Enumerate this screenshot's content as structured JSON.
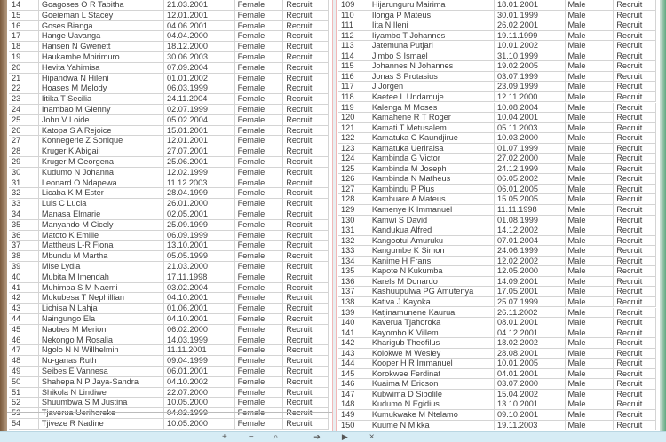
{
  "left_table": {
    "rows": [
      [
        "14",
        "Goagoses O R Tabitha",
        "21.03.2001",
        "Female",
        "Recruit"
      ],
      [
        "15",
        "Goeieman L  Stacey",
        "12.01.2001",
        "Female",
        "Recruit"
      ],
      [
        "16",
        "Goses Bianga",
        "04.06.2001",
        "Female",
        "Recruit"
      ],
      [
        "17",
        "Hange Uavanga",
        "04.04.2000",
        "Female",
        "Recruit"
      ],
      [
        "18",
        "Hansen N Gwenett",
        "18.12.2000",
        "Female",
        "Recruit"
      ],
      [
        "19",
        "Haukambe Mbirimuro",
        "30.06.2003",
        "Female",
        "Recruit"
      ],
      [
        "20",
        "Hevita Yahimisa",
        "07.09.2004",
        "Female",
        "Recruit"
      ],
      [
        "21",
        "Hipandwa N Hileni",
        "01.01.2002",
        "Female",
        "Recruit"
      ],
      [
        "22",
        "Hoases M Melody",
        "06.03.1999",
        "Female",
        "Recruit"
      ],
      [
        "23",
        "Iitika T Secilia",
        "24.11.2004",
        "Female",
        "Recruit"
      ],
      [
        "24",
        "Inambao  M Glenny",
        "02.07.1999",
        "Female",
        "Recruit"
      ],
      [
        "25",
        "John V Loide",
        "05.02.2004",
        "Female",
        "Recruit"
      ],
      [
        "26",
        "Katopa S A Rejoice",
        "15.01.2001",
        "Female",
        "Recruit"
      ],
      [
        "27",
        "Konnegerie Z Sonique",
        "12.01.2001",
        "Female",
        "Recruit"
      ],
      [
        "28",
        "Kruger  K Abigail",
        "27.07.2001",
        "Female",
        "Recruit"
      ],
      [
        "29",
        "Kruger M Georgena",
        "25.06.2001",
        "Female",
        "Recruit"
      ],
      [
        "30",
        "Kudumo N Johanna",
        "12.02.1999",
        "Female",
        "Recruit"
      ],
      [
        "31",
        "Leonard O Ndapewa",
        "11.12.2003",
        "Female",
        "Recruit"
      ],
      [
        "32",
        "Licaba K M Ester",
        "28.04.1999",
        "Female",
        "Recruit"
      ],
      [
        "33",
        "Luis C Lucia",
        "26.01.2000",
        "Female",
        "Recruit"
      ],
      [
        "34",
        "Manasa Elmarie",
        "02.05.2001",
        "Female",
        "Recruit"
      ],
      [
        "35",
        "Manyando M Cicely",
        "25.09.1999",
        "Female",
        "Recruit"
      ],
      [
        "36",
        "Matoto K Emilie",
        "06.09.1999",
        "Female",
        "Recruit"
      ],
      [
        "37",
        "Mattheus L-R Fiona",
        "13.10.2001",
        "Female",
        "Recruit"
      ],
      [
        "38",
        "Mbundu M Martha",
        "05.05.1999",
        "Female",
        "Recruit"
      ],
      [
        "39",
        "Mise Lydia",
        "21.03.2000",
        "Female",
        "Recruit"
      ],
      [
        "40",
        "Mubita M Imendah",
        "17.11.1998",
        "Female",
        "Recruit"
      ],
      [
        "41",
        "Muhimba S M Naemi",
        "03.02.2004",
        "Female",
        "Recruit"
      ],
      [
        "42",
        "Mukubesa T Nephillian",
        "04.10.2001",
        "Female",
        "Recruit"
      ],
      [
        "43",
        "Lichisa N Lahja",
        "01.06.2001",
        "Female",
        "Recruit"
      ],
      [
        "44",
        "Naingungo Ela",
        "04.10.2001",
        "Female",
        "Recruit"
      ],
      [
        "45",
        "Naobes M Merion",
        "06.02.2000",
        "Female",
        "Recruit"
      ],
      [
        "46",
        "Nekongo M Rosalia",
        "14.03.1999",
        "Female",
        "Recruit"
      ],
      [
        "47",
        "Ngolo N N Willhelmin",
        "11.11.2001",
        "Female",
        "Recruit"
      ],
      [
        "48",
        "Nu-ganas Ruth",
        "09.04.1999",
        "Female",
        "Recruit"
      ],
      [
        "49",
        "Seibes E Vannesa",
        "06.01.2001",
        "Female",
        "Recruit"
      ],
      [
        "50",
        "Shahepa N P Jaya-Sandra",
        "04.10.2002",
        "Female",
        "Recruit"
      ],
      [
        "51",
        "Shikola N  Lindiwe",
        "22.07.2000",
        "Female",
        "Recruit"
      ],
      [
        "52",
        "Shuumbwa S M Justina",
        "10.05.2000",
        "Female",
        "Recruit"
      ],
      [
        "53",
        "Tjaverua Uerihoreke",
        "04.02.1999",
        "Female",
        "Recruit"
      ],
      [
        "54",
        "Tjiveze R Nadine",
        "10.05.2000",
        "Female",
        "Recruit"
      ]
    ]
  },
  "right_table": {
    "rows": [
      [
        "109",
        "Hijarunguru Mairima",
        "18.01.2001",
        "Male",
        "Recruit"
      ],
      [
        "110",
        "Ilonga P Mateus",
        "30.01.1999",
        "Male",
        "Recruit"
      ],
      [
        "111",
        "Iita N Ileni",
        "26.02.2001",
        "Male",
        "Recruit"
      ],
      [
        "112",
        "Iiyambo T Johannes",
        "19.11.1999",
        "Male",
        "Recruit"
      ],
      [
        "113",
        "Jatemuna Putjari",
        "10.01.2002",
        "Male",
        "Recruit"
      ],
      [
        "114",
        "Jimbo S Ismael",
        "31.10.1999",
        "Male",
        "Recruit"
      ],
      [
        "115",
        "Johannes N Johannes",
        "19.02.2005",
        "Male",
        "Recruit"
      ],
      [
        "116",
        "Jonas  S Protasius",
        "03.07.1999",
        "Male",
        "Recruit"
      ],
      [
        "117",
        "J Jorgen",
        "23.09.1999",
        "Male",
        "Recruit"
      ],
      [
        "118",
        "Kaetee L Undamuje",
        "12.11.2000",
        "Male",
        "Recruit"
      ],
      [
        "119",
        "Kalenga M Moses",
        "10.08.2004",
        "Male",
        "Recruit"
      ],
      [
        "120",
        "Kamahene R T Roger",
        "10.04.2001",
        "Male",
        "Recruit"
      ],
      [
        "121",
        "Kamati T Metusalem",
        "05.11.2003",
        "Male",
        "Recruit"
      ],
      [
        "122",
        "Kamatuka C Kaundjirue",
        "10.03.2000",
        "Male",
        "Recruit"
      ],
      [
        "123",
        "Kamatuka Ueriraisa",
        "01.07.1999",
        "Male",
        "Recruit"
      ],
      [
        "124",
        "Kambinda G Victor",
        "27.02.2000",
        "Male",
        "Recruit"
      ],
      [
        "125",
        "Kambinda M Joseph",
        "24.12.1999",
        "Male",
        "Recruit"
      ],
      [
        "126",
        "Kambinda N Matheus",
        "06.05.2002",
        "Male",
        "Recruit"
      ],
      [
        "127",
        "Kambindu P Pius",
        "06.01.2005",
        "Male",
        "Recruit"
      ],
      [
        "128",
        "Kambuare A Mateus",
        "15.05.2005",
        "Male",
        "Recruit"
      ],
      [
        "129",
        "Kamenye K Immanuel",
        "11.11.1998",
        "Male",
        "Recruit"
      ],
      [
        "130",
        "Kamwi S David",
        "01.08.1999",
        "Male",
        "Recruit"
      ],
      [
        "131",
        "Kandukua Alfred",
        "14.12.2002",
        "Male",
        "Recruit"
      ],
      [
        "132",
        "Kangootui Amuruku",
        "07.01.2004",
        "Male",
        "Recruit"
      ],
      [
        "133",
        "Kangumbe K Simon",
        "24.06.1999",
        "Male",
        "Recruit"
      ],
      [
        "134",
        "Kanime H Frans",
        "12.02.2002",
        "Male",
        "Recruit"
      ],
      [
        "135",
        "Kapote N Kukumba",
        "12.05.2000",
        "Male",
        "Recruit"
      ],
      [
        "136",
        "Karels M  Donardo",
        "14.09.2001",
        "Male",
        "Recruit"
      ],
      [
        "137",
        "Kashuupulwa PG Amutenya",
        "17.05.2001",
        "Male",
        "Recruit"
      ],
      [
        "138",
        "Kativa J Kayoka",
        "25.07.1999",
        "Male",
        "Recruit"
      ],
      [
        "139",
        "Katjinamunene Kaurua",
        "26.11.2002",
        "Male",
        "Recruit"
      ],
      [
        "140",
        "Kaverua Tjahoroka",
        "08.01.2001",
        "Male",
        "Recruit"
      ],
      [
        "141",
        "Kayombo  K Villem",
        "04.12.2001",
        "Male",
        "Recruit"
      ],
      [
        "142",
        "Kharigub Theofilus",
        "18.02.2002",
        "Male",
        "Recruit"
      ],
      [
        "143",
        "Kolokwe M Wesley",
        "28.08.2001",
        "Male",
        "Recruit"
      ],
      [
        "144",
        "Kooper H  R Immanuel",
        "10.01.2005",
        "Male",
        "Recruit"
      ],
      [
        "145",
        "Korokwee Ferdinat",
        "04.01.2001",
        "Male",
        "Recruit"
      ],
      [
        "146",
        "Kuaima M Ericson",
        "03.07.2000",
        "Male",
        "Recruit"
      ],
      [
        "147",
        "Kubwima D Sibolile",
        "15.04.2002",
        "Male",
        "Recruit"
      ],
      [
        "148",
        "Kudumo N Egidius",
        "13.10.2001",
        "Male",
        "Recruit"
      ],
      [
        "149",
        "Kumukwake M Ntelamo",
        "09.10.2001",
        "Male",
        "Recruit"
      ],
      [
        "150",
        "Kuume N Mikka",
        "19.11.2003",
        "Male",
        "Recruit"
      ]
    ]
  },
  "viewer_toolbar": {
    "icons": [
      "zoom-in-icon",
      "zoom-out-icon",
      "search-icon",
      "next-icon",
      "close-icon"
    ],
    "zoom_in": "+",
    "zoom_out": "−",
    "search": "⌕",
    "next": "➔",
    "prev": "▶",
    "close": "×"
  }
}
